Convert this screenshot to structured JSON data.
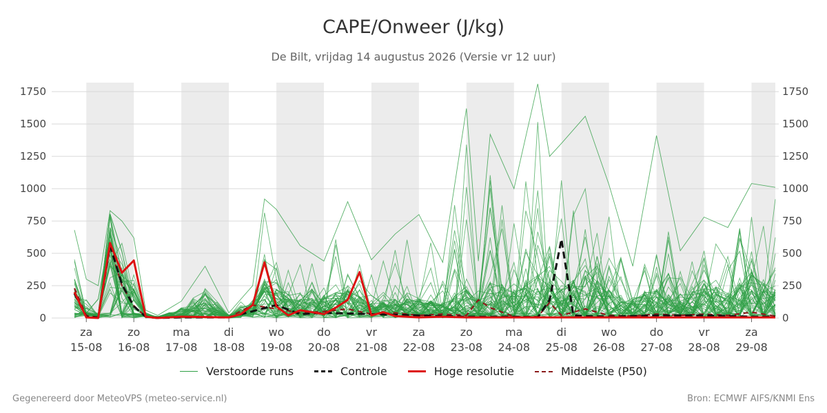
{
  "title": "CAPE/Onweer (J/kg)",
  "subtitle": "De Bilt, vrijdag 14 augustus 2026 (Versie vr 12 uur)",
  "footer": {
    "left": "Gegenereerd door MeteoVPS (meteo-service.nl)",
    "right": "Bron: ECMWF AIFS/KNMI Ens"
  },
  "colors": {
    "ensemble": "#2e9e44",
    "control": "#111111",
    "hires": "#dd1111",
    "median": "#8b1a1a",
    "weekend_band": "#ececec",
    "grid": "#d9d9d9"
  },
  "chart_data": {
    "type": "line",
    "x_unit": "days since 15-08-2026",
    "xlim": [
      -0.25,
      14.5
    ],
    "ylim": [
      0,
      1820
    ],
    "y_ticks": [
      0,
      250,
      500,
      750,
      1000,
      1250,
      1500,
      1750
    ],
    "grid": true,
    "legend_position": "bottom",
    "x_ticks": [
      {
        "day": "za",
        "date": "15-08"
      },
      {
        "day": "zo",
        "date": "16-08"
      },
      {
        "day": "ma",
        "date": "17-08"
      },
      {
        "day": "di",
        "date": "18-08"
      },
      {
        "day": "wo",
        "date": "19-08"
      },
      {
        "day": "do",
        "date": "20-08"
      },
      {
        "day": "vr",
        "date": "21-08"
      },
      {
        "day": "za",
        "date": "22-08"
      },
      {
        "day": "zo",
        "date": "23-08"
      },
      {
        "day": "ma",
        "date": "24-08"
      },
      {
        "day": "di",
        "date": "25-08"
      },
      {
        "day": "wo",
        "date": "26-08"
      },
      {
        "day": "do",
        "date": "27-08"
      },
      {
        "day": "vr",
        "date": "28-08"
      },
      {
        "day": "za",
        "date": "29-08"
      }
    ],
    "weekend_bands": [
      [
        0,
        1
      ],
      [
        2,
        3
      ],
      [
        4,
        5
      ],
      [
        6,
        7
      ],
      [
        8,
        9
      ],
      [
        10,
        11
      ],
      [
        12,
        13
      ],
      [
        14,
        14.5
      ]
    ],
    "series": [
      {
        "name": "Controle",
        "x": [
          -0.25,
          0,
          0.25,
          0.5,
          0.75,
          1,
          1.25,
          1.5,
          2,
          3,
          4,
          4.5,
          5,
          6,
          7,
          8,
          9,
          9.5,
          9.75,
          10,
          10.25,
          10.5,
          11,
          12,
          13,
          14,
          14.5
        ],
        "y": [
          190,
          10,
          5,
          560,
          260,
          90,
          10,
          0,
          5,
          5,
          100,
          30,
          40,
          30,
          20,
          10,
          10,
          5,
          140,
          610,
          20,
          15,
          10,
          20,
          20,
          10,
          10
        ]
      },
      {
        "name": "Hoge resolutie",
        "x": [
          -0.25,
          0,
          0.25,
          0.5,
          0.75,
          1,
          1.25,
          1.5,
          2,
          3,
          3.25,
          3.5,
          3.75,
          4,
          4.25,
          4.5,
          5,
          5.25,
          5.5,
          5.75,
          6,
          6.25,
          6.5,
          7,
          7.5,
          8,
          8.5,
          9,
          10,
          11,
          12,
          13,
          14,
          14.5
        ],
        "y": [
          200,
          5,
          0,
          580,
          350,
          445,
          10,
          0,
          10,
          5,
          30,
          100,
          430,
          90,
          20,
          60,
          30,
          80,
          140,
          355,
          20,
          45,
          15,
          5,
          10,
          5,
          5,
          5,
          5,
          5,
          5,
          5,
          5,
          5
        ]
      },
      {
        "name": "Middelste (P50)",
        "x": [
          -0.25,
          0,
          0.25,
          0.5,
          0.75,
          1,
          1.25,
          1.5,
          2,
          3,
          3.5,
          4,
          4.5,
          5,
          5.5,
          6,
          6.5,
          7,
          7.5,
          8,
          8.25,
          8.5,
          9,
          9.5,
          9.75,
          10,
          10.5,
          11,
          11.5,
          12,
          12.5,
          13,
          13.5,
          14,
          14.5
        ],
        "y": [
          230,
          20,
          5,
          560,
          250,
          95,
          10,
          5,
          10,
          5,
          100,
          70,
          40,
          50,
          70,
          30,
          40,
          20,
          30,
          20,
          140,
          80,
          10,
          10,
          120,
          20,
          70,
          20,
          15,
          30,
          20,
          30,
          20,
          45,
          15
        ]
      }
    ],
    "ensemble": {
      "name": "Verstoorde runs",
      "member_count": 50,
      "envelope_x": [
        -0.25,
        0,
        0.25,
        0.5,
        0.75,
        1,
        1.25,
        1.5,
        2,
        2.5,
        3,
        3.5,
        3.75,
        4,
        4.5,
        5,
        5.5,
        6,
        6.5,
        7,
        7.5,
        8,
        8.25,
        8.5,
        9,
        9.5,
        9.75,
        10,
        10.5,
        11,
        11.5,
        12,
        12.5,
        13,
        13.5,
        14,
        14.5
      ],
      "envelope_y": [
        680,
        300,
        250,
        830,
        750,
        620,
        60,
        20,
        130,
        400,
        40,
        250,
        920,
        840,
        560,
        440,
        900,
        450,
        650,
        800,
        430,
        1620,
        440,
        1420,
        1000,
        1810,
        1250,
        1350,
        1560,
        1030,
        400,
        1410,
        520,
        780,
        700,
        1040,
        1010
      ],
      "median_y": [
        200,
        30,
        20,
        560,
        300,
        200,
        20,
        5,
        20,
        30,
        10,
        80,
        200,
        150,
        100,
        120,
        150,
        80,
        100,
        100,
        80,
        150,
        100,
        200,
        150,
        250,
        200,
        150,
        250,
        150,
        100,
        150,
        100,
        200,
        120,
        250,
        150
      ]
    }
  },
  "legend": [
    {
      "key": "ensemble",
      "label": "Verstoorde runs"
    },
    {
      "key": "control",
      "label": "Controle"
    },
    {
      "key": "hires",
      "label": "Hoge resolutie"
    },
    {
      "key": "median",
      "label": "Middelste (P50)"
    }
  ]
}
